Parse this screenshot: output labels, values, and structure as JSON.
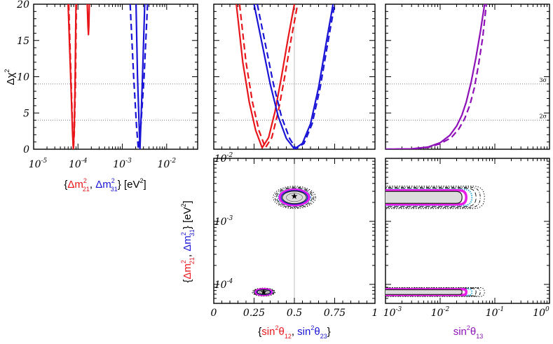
{
  "colors": {
    "red": "#e8161b",
    "blue": "#1a14d6",
    "purple": "#8e10b8",
    "magenta": "#e81ee8",
    "cyan": "#3fb4e6",
    "fill_gray": "#dcdcdc",
    "grid_gray": "#9a9a9a"
  },
  "axis_labels": {
    "top_y": {
      "base": "Δχ",
      "sup": "2"
    },
    "xlabel_mass": {
      "open": "{",
      "dm21": "Δm",
      "dm21_sup": "2",
      "dm21_sub": "21",
      "sep": ", ",
      "dm31": "Δm",
      "dm31_sup": "2",
      "dm31_sub": "31",
      "close": "} [eV",
      "unit_sup": "2",
      "end": "]"
    },
    "ylabel_mass": {
      "open": "{",
      "dm21": "Δm",
      "dm21_sup": "2",
      "dm21_sub": "21",
      "sep": ", ",
      "dm31": "Δm",
      "dm31_sup": "2",
      "dm31_sub": "31",
      "close": "} [eV",
      "unit_sup": "2",
      "end": "]"
    },
    "xlabel_angle": {
      "open": "{",
      "s12": "sin",
      "s12_sup": "2",
      "s12_theta": "θ",
      "s12_sub": "12",
      "sep": ", ",
      "s23": "sin",
      "s23_sup": "2",
      "s23_theta": "θ",
      "s23_sub": "23",
      "close": "}"
    },
    "xlabel_theta13": {
      "s13": "sin",
      "s13_sup": "2",
      "s13_theta": "θ",
      "s13_sub": "13"
    }
  },
  "sigma_lines": [
    {
      "label": "3σ",
      "value": 9
    },
    {
      "label": "2σ",
      "value": 4
    }
  ],
  "chart_data": [
    {
      "type": "line",
      "panel": "top-left",
      "xscale": "log",
      "xlim": [
        1e-05,
        0.05
      ],
      "ylim": [
        0,
        20
      ],
      "x_ticks": [
        {
          "base": "10",
          "exp": "-5",
          "value": 1e-05
        },
        {
          "base": "10",
          "exp": "-4",
          "value": 0.0001
        },
        {
          "base": "10",
          "exp": "-3",
          "value": 0.001
        },
        {
          "base": "10",
          "exp": "-2",
          "value": 0.01
        }
      ],
      "y_ticks": [
        "0",
        "5",
        "10",
        "15",
        "20"
      ],
      "series": [
        {
          "color": "red",
          "dash": false,
          "x": [
            6e-05,
            7e-05,
            7.5e-05,
            7.85e-05,
            8.2e-05,
            8.6e-05,
            9e-05
          ],
          "y": [
            20,
            8,
            2.5,
            0,
            2.5,
            9,
            20
          ]
        },
        {
          "color": "red",
          "dash": true,
          "x": [
            6.2e-05,
            7.1e-05,
            7.6e-05,
            7.9e-05,
            8.3e-05,
            8.8e-05,
            9.2e-05
          ],
          "y": [
            20,
            8,
            2.5,
            0,
            2.5,
            9,
            20
          ]
        },
        {
          "color": "red",
          "dash": false,
          "x": [
            0.000162,
            0.000168,
            0.000172,
            0.000176,
            0.00018
          ],
          "y": [
            20,
            17,
            15.8,
            17,
            20
          ]
        },
        {
          "color": "blue",
          "dash": false,
          "x": [
            0.00204,
            0.0022,
            0.0024,
            0.0025,
            0.0026,
            0.00285,
            0.0032
          ],
          "y": [
            20,
            10,
            3,
            0,
            3,
            10,
            20
          ]
        },
        {
          "color": "blue",
          "dash": true,
          "x": [
            0.0015,
            0.0018,
            0.0021,
            0.0023,
            0.0026,
            0.0031,
            0.0037
          ],
          "y": [
            20,
            10,
            3,
            0,
            3,
            10,
            20
          ]
        }
      ]
    },
    {
      "type": "line",
      "panel": "top-middle",
      "xlim": [
        0,
        1
      ],
      "ylim": [
        0,
        20
      ],
      "vline": 0.5,
      "series": [
        {
          "color": "red",
          "dash": false,
          "x": [
            0.14,
            0.18,
            0.22,
            0.26,
            0.3,
            0.34,
            0.38,
            0.42,
            0.46,
            0.5
          ],
          "y": [
            20,
            12,
            6.5,
            2.6,
            0.2,
            1.6,
            5.2,
            10,
            15.2,
            20
          ]
        },
        {
          "color": "red",
          "dash": true,
          "x": [
            0.16,
            0.2,
            0.24,
            0.28,
            0.32,
            0.36,
            0.4,
            0.44,
            0.48,
            0.52
          ],
          "y": [
            20,
            12,
            6.5,
            2.6,
            0.2,
            1.6,
            5.2,
            10,
            15.2,
            20
          ]
        },
        {
          "color": "blue",
          "dash": false,
          "x": [
            0.25,
            0.3,
            0.35,
            0.4,
            0.45,
            0.5,
            0.55,
            0.6,
            0.65,
            0.7,
            0.74
          ],
          "y": [
            20,
            14.5,
            9,
            4.5,
            1.5,
            0.05,
            0.8,
            3.5,
            8.5,
            15,
            20
          ]
        },
        {
          "color": "blue",
          "dash": true,
          "x": [
            0.27,
            0.32,
            0.37,
            0.42,
            0.47,
            0.51,
            0.56,
            0.61,
            0.66,
            0.71,
            0.75
          ],
          "y": [
            20,
            14.5,
            9,
            4.5,
            1.5,
            0.05,
            0.8,
            3.5,
            8.5,
            15,
            20
          ]
        }
      ]
    },
    {
      "type": "line",
      "panel": "top-right",
      "xscale": "log",
      "xlim": [
        0.001,
        1
      ],
      "ylim": [
        0,
        20
      ],
      "series": [
        {
          "color": "purple",
          "dash": false,
          "x": [
            0.001,
            0.003,
            0.006,
            0.01,
            0.015,
            0.02,
            0.025,
            0.03,
            0.037,
            0.045,
            0.055,
            0.065
          ],
          "y": [
            0,
            0.05,
            0.3,
            0.9,
            1.9,
            3.2,
            4.7,
            6.5,
            9.3,
            12.6,
            16.4,
            20
          ]
        },
        {
          "color": "purple",
          "dash": true,
          "x": [
            0.001,
            0.003,
            0.006,
            0.01,
            0.016,
            0.022,
            0.028,
            0.035,
            0.042,
            0.05,
            0.06,
            0.07
          ],
          "y": [
            0,
            0.04,
            0.25,
            0.75,
            1.6,
            2.8,
            4.2,
            6.1,
            8.4,
            11.5,
            15.4,
            20
          ]
        }
      ]
    },
    {
      "type": "contour",
      "panel": "bottom-middle",
      "xlim": [
        0,
        1
      ],
      "ylabel_scale": "log",
      "ylim": [
        5e-05,
        0.01
      ],
      "x_ticks": [
        "0",
        "0.25",
        "0.5",
        "0.75",
        "1"
      ],
      "y_ticks": [
        {
          "base": "10",
          "exp": "-4",
          "value": 0.0001
        },
        {
          "base": "10",
          "exp": "-3",
          "value": 0.001
        },
        {
          "base": "10",
          "exp": "-2",
          "value": 0.01
        }
      ],
      "regions": [
        {
          "cx": 0.5,
          "cy": 0.0024,
          "rx": 0.13,
          "ry_log": 0.13,
          "color": "magenta"
        },
        {
          "cx": 0.31,
          "cy": 7.55e-05,
          "rx": 0.07,
          "ry_log": 0.05,
          "color": "magenta"
        }
      ],
      "best_fit": [
        {
          "x": 0.5,
          "y": 0.0025
        },
        {
          "x": 0.31,
          "y": 7.5e-05
        }
      ]
    },
    {
      "type": "contour",
      "panel": "bottom-right",
      "xscale": "log",
      "xlim": [
        0.001,
        1
      ],
      "ylabel_scale": "log",
      "ylim": [
        5e-05,
        0.01
      ],
      "x_ticks": [
        {
          "base": "10",
          "exp": "-3",
          "value": 0.001
        },
        {
          "base": "10",
          "exp": "-2",
          "value": 0.01
        },
        {
          "base": "10",
          "exp": "-1",
          "value": 0.1
        },
        {
          "base": "10",
          "exp": "0",
          "value": 1
        }
      ],
      "regions": [
        {
          "xmax": 0.03,
          "cy": 0.0024,
          "color": "magenta"
        },
        {
          "xmax": 0.03,
          "cy": 7.55e-05,
          "color": "magenta"
        }
      ]
    }
  ]
}
